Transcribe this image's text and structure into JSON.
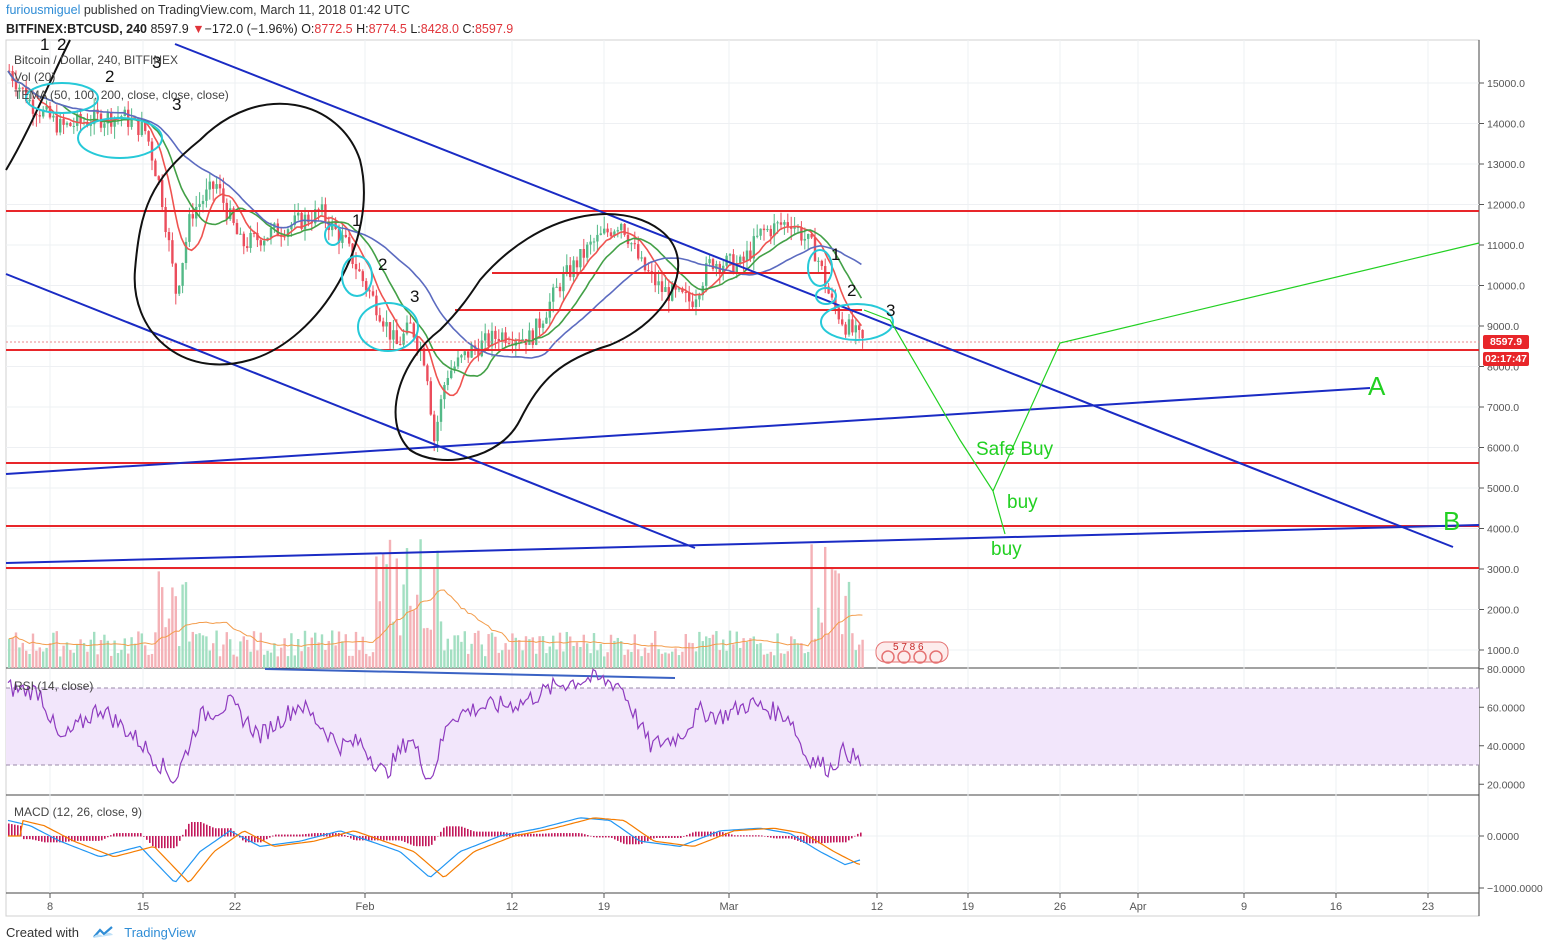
{
  "header": {
    "author": "furiousmiguel",
    "published": "published on TradingView.com, March 11, 2018 01:42 UTC"
  },
  "symbol_line": {
    "symbol": "BITFINEX:BTCUSD, 240",
    "last": "8597.9",
    "change_arrow": "▼",
    "change": "−172.0 (−1.96%)",
    "o_label": "O:",
    "o": "8772.5",
    "h_label": "H:",
    "h": "8774.5",
    "l_label": "L:",
    "l": "8428.0",
    "c_label": "C:",
    "c": "8597.9"
  },
  "legends": {
    "title": "Bitcoin / Dollar, 240, BITFINEX",
    "vol": "Vol (20)",
    "tema": "TEMA (50, 100, 200, close, close, close)",
    "rsi": "RSI (14, close)",
    "macd": "MACD (12, 26, close, 9)"
  },
  "price_axis": [
    "15000.0",
    "14000.0",
    "13000.0",
    "12000.0",
    "11000.0",
    "10000.0",
    "9000.0",
    "8000.0",
    "7000.0",
    "6000.0",
    "5000.0",
    "4000.0",
    "3000.0",
    "2000.0",
    "1000.0"
  ],
  "rsi_axis": [
    "80.0000",
    "60.0000",
    "40.0000",
    "20.0000"
  ],
  "macd_axis": [
    "0.0000",
    "−1000.0000"
  ],
  "price_tag": "8597.9",
  "time_tag": "02:17:47",
  "x_axis": [
    "8",
    "15",
    "22",
    "Feb",
    "12",
    "19",
    "Mar",
    "12",
    "19",
    "26",
    "Apr",
    "9",
    "16",
    "23"
  ],
  "annotations": {
    "safe_buy": "Safe Buy",
    "buy1": "buy",
    "buy2": "buy",
    "label_a": "A",
    "label_b": "B",
    "wave_nums": [
      "1",
      "2",
      "3",
      "2",
      "3",
      "1",
      "2",
      "3",
      "1",
      "2",
      "3"
    ],
    "events_badge": "5 7 8 6"
  },
  "footer": {
    "created_with": "Created with",
    "brand": "TradingView"
  },
  "colors": {
    "up": "#53b987",
    "down": "#eb4d5c",
    "trend_blue": "#1a2bc4",
    "support_red": "#e8262a",
    "target_green": "#22d022",
    "cyan": "#26c9d8",
    "rsi": "#8e3bbf",
    "macd": "#2196f3",
    "signal": "#f57c00",
    "hist": "#c2185b"
  }
}
